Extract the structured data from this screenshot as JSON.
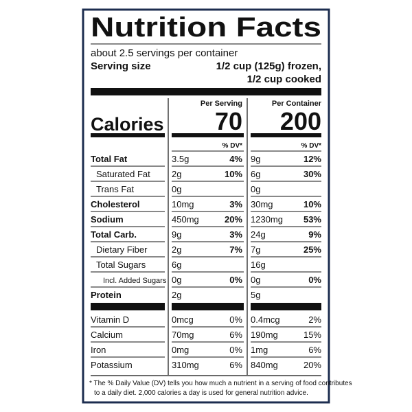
{
  "title": "Nutrition Facts",
  "servings": "about 2.5 servings per container",
  "serving_size": {
    "label": "Serving size",
    "lines": [
      "1/2 cup (125g) frozen,",
      "1/2 cup cooked"
    ]
  },
  "columns": [
    "Per Serving",
    "Per Container"
  ],
  "calories": {
    "label": "Calories",
    "values": [
      "70",
      "200"
    ]
  },
  "dv_header": "% DV*",
  "nutrients": [
    {
      "name": "Total Fat",
      "level": 0,
      "amounts": [
        "3.5g",
        "9g"
      ],
      "dv": [
        "4%",
        "12%"
      ]
    },
    {
      "name": "Saturated Fat",
      "level": 1,
      "amounts": [
        "2g",
        "6g"
      ],
      "dv": [
        "10%",
        "30%"
      ]
    },
    {
      "name": "Trans Fat",
      "level": 1,
      "amounts": [
        "0g",
        "0g"
      ]
    },
    {
      "name": "Cholesterol",
      "level": 0,
      "amounts": [
        "10mg",
        "30mg"
      ],
      "dv": [
        "3%",
        "10%"
      ]
    },
    {
      "name": "Sodium",
      "level": 0,
      "amounts": [
        "450mg",
        "1230mg"
      ],
      "dv": [
        "20%",
        "53%"
      ]
    },
    {
      "name": "Total Carb.",
      "level": 0,
      "amounts": [
        "9g",
        "24g"
      ],
      "dv": [
        "3%",
        "9%"
      ]
    },
    {
      "name": "Dietary Fiber",
      "level": 1,
      "amounts": [
        "2g",
        "7g"
      ],
      "dv": [
        "7%",
        "25%"
      ]
    },
    {
      "name": "Total Sugars",
      "level": 1,
      "amounts": [
        "6g",
        "16g"
      ]
    },
    {
      "name": "Incl. Added Sugars",
      "level": 2,
      "amounts": [
        "0g",
        "0g"
      ],
      "dv": [
        "0%",
        "0%"
      ]
    },
    {
      "name": "Protein",
      "level": 0,
      "amounts": [
        "2g",
        "5g"
      ]
    }
  ],
  "vitamins": [
    {
      "name": "Vitamin D",
      "amounts": [
        "0mcg",
        "0.4mcg"
      ],
      "dv": [
        "0%",
        "2%"
      ]
    },
    {
      "name": "Calcium",
      "amounts": [
        "70mg",
        "190mg"
      ],
      "dv": [
        "6%",
        "15%"
      ]
    },
    {
      "name": "Iron",
      "amounts": [
        "0mg",
        "1mg"
      ],
      "dv": [
        "0%",
        "6%"
      ]
    },
    {
      "name": "Potassium",
      "amounts": [
        "310mg",
        "840mg"
      ],
      "dv": [
        "6%",
        "20%"
      ]
    }
  ],
  "footnote": [
    "* The % Daily Value (DV) tells you how much a nutrient in a serving of food contributes",
    "to a daily diet. 2,000 calories a day is used for general nutrition advice."
  ]
}
